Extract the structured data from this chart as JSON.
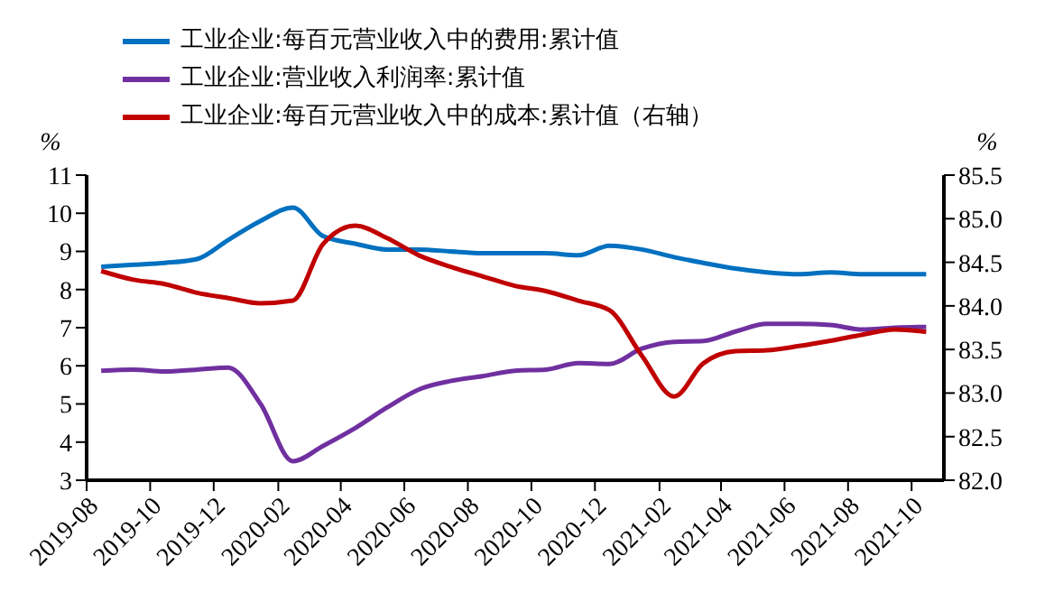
{
  "chart_data": {
    "type": "line",
    "ylabel": "%",
    "y2label": "%",
    "legend": "top left",
    "x": [
      "2019-08-15",
      "2019-09-15",
      "2019-10-15",
      "2019-11-15",
      "2019-12-15",
      "2020-01-15",
      "2020-02-15",
      "2020-03-15",
      "2020-04-15",
      "2020-05-15",
      "2020-06-15",
      "2020-07-15",
      "2020-08-15",
      "2020-09-15",
      "2020-10-15",
      "2020-11-15",
      "2020-12-15",
      "2021-01-15",
      "2021-02-15",
      "2021-03-15",
      "2021-04-15",
      "2021-05-15",
      "2021-06-15",
      "2021-07-15",
      "2021-08-15",
      "2021-09-15",
      "2021-10-15"
    ],
    "xlim": [
      "2019-08",
      "2021-11"
    ],
    "xticks": [
      "2019-08",
      "2019-10",
      "2019-12",
      "2020-02",
      "2020-04",
      "2020-06",
      "2020-08",
      "2020-10",
      "2020-12",
      "2021-02",
      "2021-04",
      "2021-06",
      "2021-08",
      "2021-10"
    ],
    "ylim": [
      3,
      11
    ],
    "yticks": [
      3,
      4,
      5,
      6,
      7,
      8,
      9,
      10,
      11
    ],
    "y2lim": [
      82,
      85.5
    ],
    "y2ticks": [
      {
        "value": 82,
        "label": "82.0"
      },
      {
        "value": 82.5,
        "label": "82.5"
      },
      {
        "value": 83,
        "label": "83.0"
      },
      {
        "value": 83.5,
        "label": "83.5"
      },
      {
        "value": 84,
        "label": "84.0"
      },
      {
        "value": 84.5,
        "label": "84.5"
      },
      {
        "value": 85,
        "label": "85.0"
      },
      {
        "value": 85.5,
        "label": "85.5"
      }
    ],
    "series": [
      {
        "name": "工业企业:每百元营业收入中的费用:累计值",
        "color": "#0070c0",
        "values": [
          8.6,
          8.65,
          8.7,
          8.8,
          9.3,
          9.8,
          10.15,
          9.4,
          9.2,
          9.05,
          9.05,
          9.0,
          8.95,
          8.95,
          8.95,
          8.9,
          9.15,
          9.05,
          8.85,
          8.7,
          8.55,
          8.45,
          8.4,
          8.45,
          8.4,
          8.4,
          8.4
        ]
      },
      {
        "name": "工业企业:营业收入利润率:累计值",
        "color": "#7030a0",
        "values": [
          5.87,
          5.9,
          5.85,
          5.9,
          5.95,
          5.0,
          3.5,
          3.9,
          4.37,
          4.9,
          5.38,
          5.6,
          5.73,
          5.87,
          5.9,
          6.07,
          6.05,
          6.45,
          6.63,
          6.65,
          6.9,
          7.1,
          7.1,
          7.07,
          6.95,
          7.0,
          7.02
        ]
      },
      {
        "name": "工业企业:每百元营业收入中的成本:累计值（右轴）",
        "color": "#c00000",
        "axis": "y2",
        "values": [
          84.4,
          84.3,
          84.25,
          84.15,
          84.09,
          84.03,
          84.06,
          84.71,
          84.92,
          84.78,
          84.58,
          84.45,
          84.34,
          84.23,
          84.17,
          84.06,
          83.95,
          83.43,
          82.96,
          83.34,
          83.48,
          83.49,
          83.54,
          83.6,
          83.67,
          83.73,
          83.7
        ]
      }
    ]
  }
}
